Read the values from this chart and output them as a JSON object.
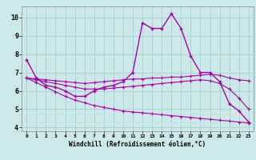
{
  "title": "",
  "xlabel": "Windchill (Refroidissement éolien,°C)",
  "ylabel": "",
  "bg_color": "#cce8e8",
  "grid_color": "#aad4d4",
  "line_color": "#aa00aa",
  "xlim": [
    -0.5,
    23.5
  ],
  "ylim": [
    3.8,
    10.6
  ],
  "xticks": [
    0,
    1,
    2,
    3,
    4,
    5,
    6,
    7,
    8,
    9,
    10,
    11,
    12,
    13,
    14,
    15,
    16,
    17,
    18,
    19,
    20,
    21,
    22,
    23
  ],
  "yticks": [
    4,
    5,
    6,
    7,
    8,
    9,
    10
  ],
  "main_x": [
    0,
    1,
    2,
    3,
    4,
    5,
    6,
    7,
    8,
    9,
    10,
    11,
    12,
    13,
    14,
    15,
    16,
    17,
    18,
    19,
    20,
    21,
    22,
    23
  ],
  "main_y": [
    7.7,
    6.7,
    6.3,
    6.2,
    6.0,
    5.7,
    5.7,
    6.0,
    6.2,
    6.3,
    6.5,
    7.0,
    9.7,
    9.4,
    9.4,
    10.2,
    9.4,
    7.9,
    7.0,
    7.0,
    6.5,
    5.3,
    4.9,
    4.3
  ],
  "line2_x": [
    0,
    1,
    2,
    3,
    4,
    5,
    6,
    7,
    8,
    9,
    10,
    11,
    12,
    13,
    14,
    15,
    16,
    17,
    18,
    19,
    20,
    21,
    22,
    23
  ],
  "line2_y": [
    6.7,
    6.65,
    6.6,
    6.55,
    6.5,
    6.45,
    6.4,
    6.45,
    6.5,
    6.55,
    6.6,
    6.65,
    6.65,
    6.7,
    6.7,
    6.75,
    6.75,
    6.8,
    6.85,
    6.9,
    6.85,
    6.7,
    6.6,
    6.55
  ],
  "line3_x": [
    0,
    1,
    2,
    3,
    4,
    5,
    6,
    7,
    8,
    9,
    10,
    11,
    12,
    13,
    14,
    15,
    16,
    17,
    18,
    19,
    20,
    21,
    22,
    23
  ],
  "line3_y": [
    6.7,
    6.6,
    6.5,
    6.4,
    6.3,
    6.2,
    6.1,
    6.1,
    6.1,
    6.15,
    6.2,
    6.25,
    6.3,
    6.35,
    6.4,
    6.45,
    6.5,
    6.55,
    6.6,
    6.55,
    6.4,
    6.1,
    5.6,
    5.0
  ],
  "line4_x": [
    0,
    1,
    2,
    3,
    4,
    5,
    6,
    7,
    8,
    9,
    10,
    11,
    12,
    13,
    14,
    15,
    16,
    17,
    18,
    19,
    20,
    21,
    22,
    23
  ],
  "line4_y": [
    6.7,
    6.45,
    6.2,
    5.95,
    5.7,
    5.5,
    5.35,
    5.2,
    5.1,
    5.0,
    4.9,
    4.85,
    4.8,
    4.75,
    4.7,
    4.65,
    4.6,
    4.55,
    4.5,
    4.45,
    4.4,
    4.35,
    4.3,
    4.25
  ]
}
